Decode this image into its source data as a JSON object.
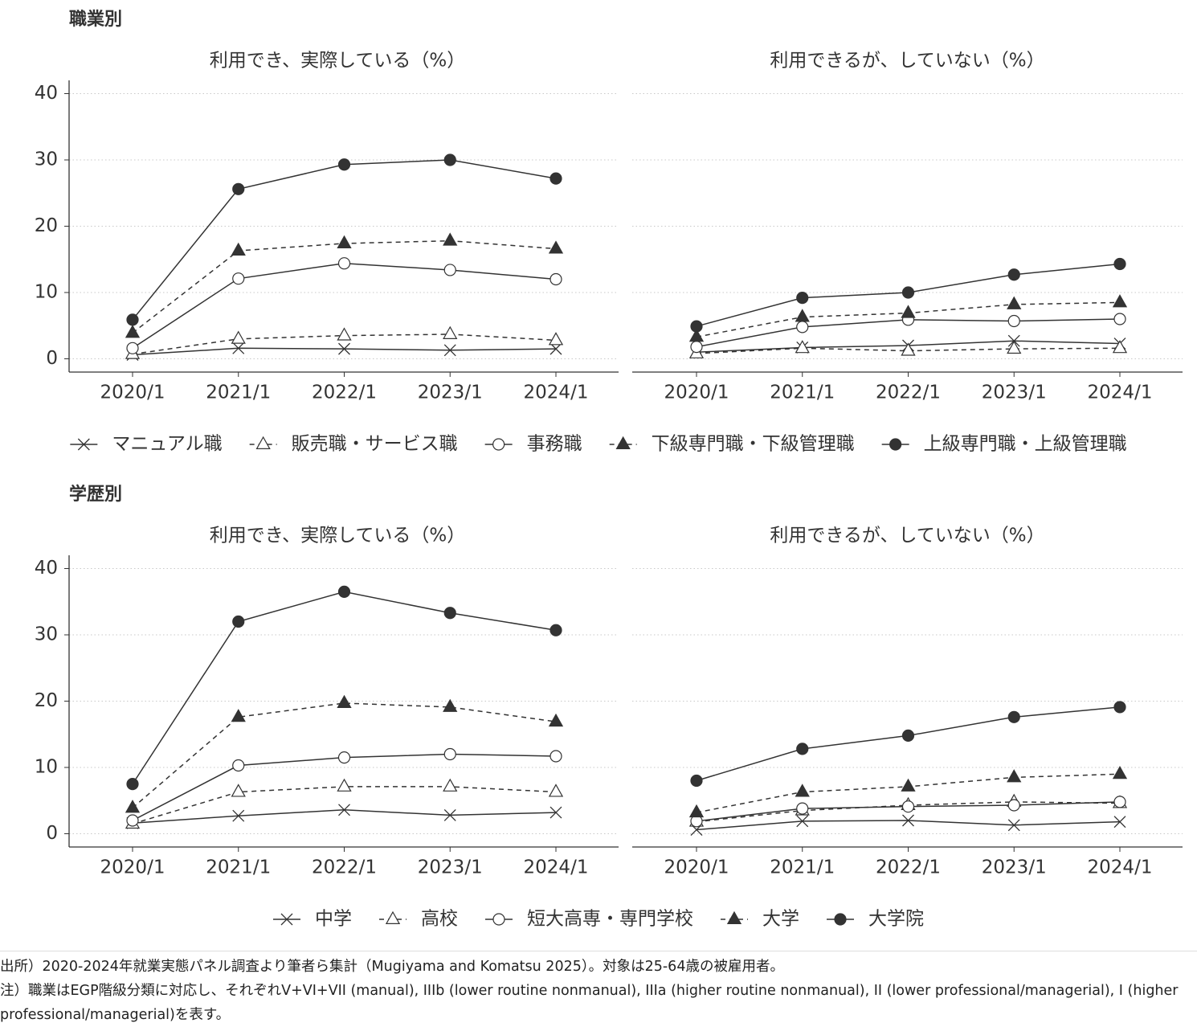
{
  "chart_data": [
    {
      "type": "line",
      "title": "職業別",
      "color": "#333333",
      "grid": true,
      "panels": [
        "利用でき、実際している（%）",
        "利用できるが、していない（%）"
      ],
      "x": [
        "2020/1",
        "2021/1",
        "2022/1",
        "2023/1",
        "2024/1"
      ],
      "ylim": [
        -2,
        42
      ],
      "yticks": [
        0,
        10,
        20,
        30,
        40
      ],
      "series": [
        {
          "name": "マニュアル職",
          "marker": "x",
          "dashed": false,
          "values": [
            [
              0.6,
              1.6,
              1.5,
              1.3,
              1.5
            ],
            [
              1.0,
              1.7,
              2.0,
              2.7,
              2.3
            ]
          ]
        },
        {
          "name": "販売職・サービス職",
          "marker": "triangle-open",
          "dashed": true,
          "values": [
            [
              0.7,
              3.0,
              3.5,
              3.7,
              2.8
            ],
            [
              0.8,
              1.6,
              1.2,
              1.5,
              1.6
            ]
          ]
        },
        {
          "name": "事務職",
          "marker": "circle-open",
          "dashed": false,
          "values": [
            [
              1.6,
              12.1,
              14.4,
              13.4,
              12.0
            ],
            [
              1.8,
              4.8,
              5.9,
              5.7,
              6.0
            ]
          ]
        },
        {
          "name": "下級専門職・下級管理職",
          "marker": "triangle",
          "dashed": true,
          "values": [
            [
              3.9,
              16.3,
              17.4,
              17.8,
              16.6
            ],
            [
              3.3,
              6.3,
              6.9,
              8.2,
              8.5
            ]
          ]
        },
        {
          "name": "上級専門職・上級管理職",
          "marker": "circle",
          "dashed": false,
          "values": [
            [
              5.9,
              25.6,
              29.3,
              30.0,
              27.2
            ],
            [
              4.9,
              9.2,
              10.0,
              12.7,
              14.3
            ]
          ]
        }
      ]
    },
    {
      "type": "line",
      "title": "学歴別",
      "color": "#333333",
      "grid": true,
      "panels": [
        "利用でき、実際している（%）",
        "利用できるが、していない（%）"
      ],
      "x": [
        "2020/1",
        "2021/1",
        "2022/1",
        "2023/1",
        "2024/1"
      ],
      "ylim": [
        -2,
        42
      ],
      "yticks": [
        0,
        10,
        20,
        30,
        40
      ],
      "series": [
        {
          "name": "中学",
          "marker": "x",
          "dashed": false,
          "values": [
            [
              1.6,
              2.7,
              3.6,
              2.8,
              3.2
            ],
            [
              0.6,
              1.9,
              2.0,
              1.3,
              1.8
            ]
          ]
        },
        {
          "name": "高校",
          "marker": "triangle-open",
          "dashed": true,
          "values": [
            [
              1.5,
              6.3,
              7.1,
              7.1,
              6.3
            ],
            [
              1.8,
              3.5,
              4.3,
              4.8,
              4.6
            ]
          ]
        },
        {
          "name": "短大高専・専門学校",
          "marker": "circle-open",
          "dashed": false,
          "values": [
            [
              2.0,
              10.3,
              11.5,
              12.0,
              11.7
            ],
            [
              1.9,
              3.8,
              4.1,
              4.3,
              4.8
            ]
          ]
        },
        {
          "name": "大学",
          "marker": "triangle",
          "dashed": true,
          "values": [
            [
              3.9,
              17.6,
              19.7,
              19.1,
              16.9
            ],
            [
              3.2,
              6.3,
              7.1,
              8.5,
              9.0
            ]
          ]
        },
        {
          "name": "大学院",
          "marker": "circle",
          "dashed": false,
          "values": [
            [
              7.5,
              32.0,
              36.5,
              33.3,
              30.7
            ],
            [
              8.0,
              12.8,
              14.8,
              17.6,
              19.1
            ]
          ]
        }
      ]
    }
  ],
  "notes": [
    "出所）2020-2024年就業実態パネル調査より筆者ら集計（Mugiyama and Komatsu 2025）。対象は25-64歳の被雇用者。",
    "注）職業はEGP階級分類に対応し、それぞれV+VI+VII (manual), IIIb (lower routine nonmanual), IIIa (higher routine nonmanual), II (lower professional/managerial), I (higher professional/managerial)を表す。"
  ]
}
